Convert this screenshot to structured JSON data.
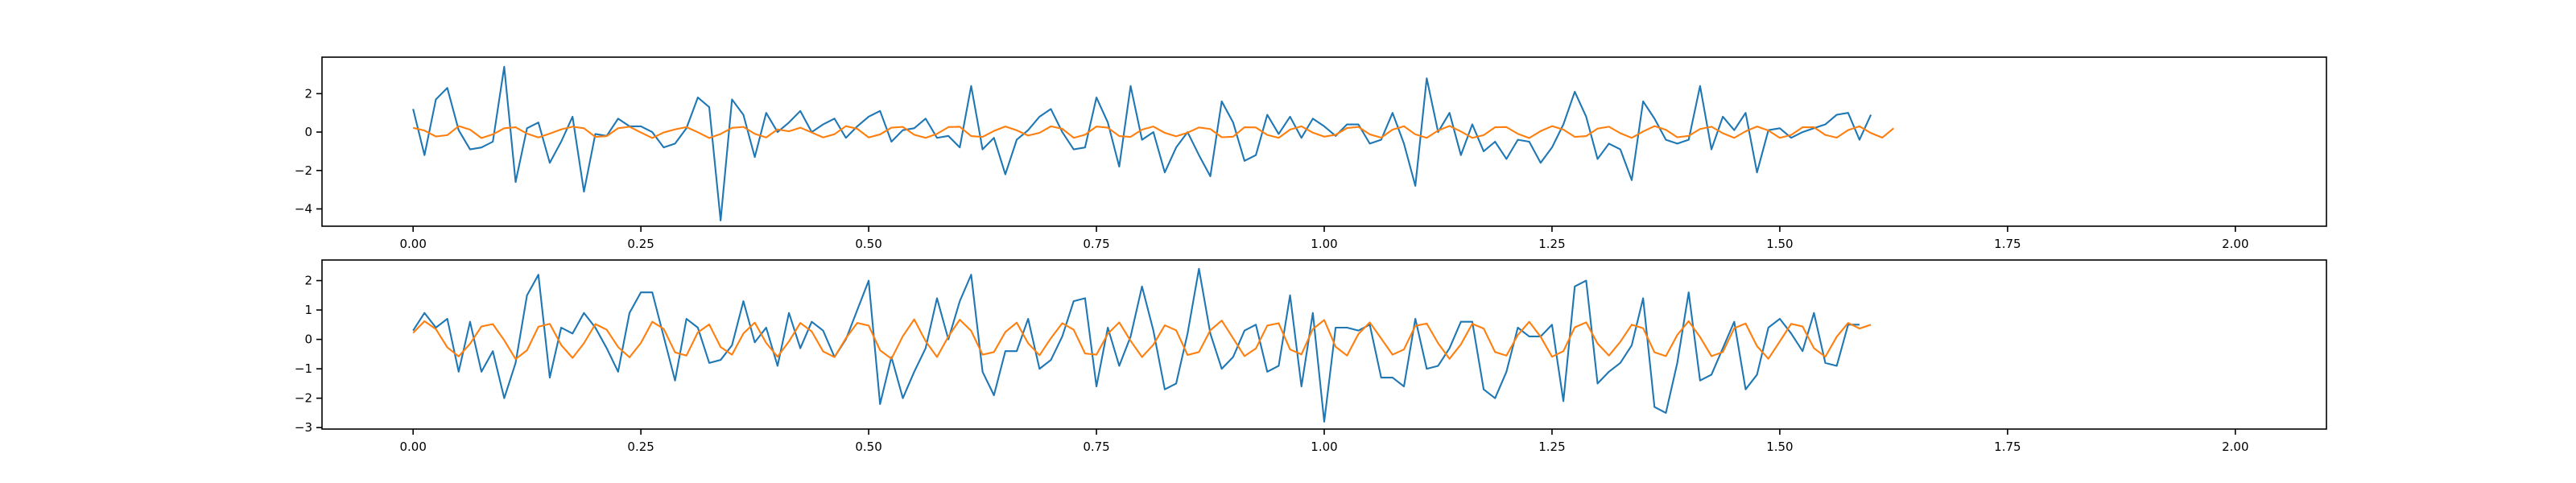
{
  "colors": {
    "noisy": "#1f77b4",
    "smooth": "#ff7f0e",
    "axis": "#000000",
    "background": "#ffffff"
  },
  "chart_data": [
    {
      "type": "line",
      "xlabel": "",
      "ylabel": "",
      "xlim": [
        -0.1,
        2.1
      ],
      "ylim": [
        -4.9,
        3.9
      ],
      "xticks": [
        0.0,
        0.25,
        0.5,
        0.75,
        1.0,
        1.25,
        1.5,
        1.75,
        2.0
      ],
      "xtick_labels": [
        "0.00",
        "0.25",
        "0.50",
        "0.75",
        "1.00",
        "1.25",
        "1.50",
        "1.75",
        "2.00"
      ],
      "yticks": [
        -4,
        -2,
        0,
        2
      ],
      "ytick_labels": [
        "−4",
        "−2",
        "0",
        "2"
      ],
      "grid": false,
      "x_start": 0.0,
      "x_step": 0.0125,
      "series": [
        {
          "color": "#1f77b4",
          "values": [
            1.2,
            -1.2,
            1.7,
            2.3,
            0.1,
            -0.9,
            -0.8,
            -0.5,
            3.4,
            -2.6,
            0.2,
            0.5,
            -1.6,
            -0.5,
            0.8,
            -3.1,
            -0.1,
            -0.2,
            0.7,
            0.3,
            0.3,
            0.0,
            -0.8,
            -0.6,
            0.2,
            1.8,
            1.3,
            -4.6,
            1.7,
            0.9,
            -1.3,
            1.0,
            0.0,
            0.5,
            1.1,
            0.0,
            0.4,
            0.7,
            -0.3,
            0.3,
            0.8,
            1.1,
            -0.5,
            0.1,
            0.2,
            0.7,
            -0.3,
            -0.2,
            -0.8,
            2.4,
            -0.9,
            -0.3,
            -2.2,
            -0.4,
            0.1,
            0.8,
            1.2,
            0.0,
            -0.9,
            -0.8,
            1.8,
            0.5,
            -1.8,
            2.4,
            -0.4,
            0.0,
            -2.1,
            -0.8,
            0.0,
            -1.2,
            -2.3,
            1.6,
            0.5,
            -1.5,
            -1.2,
            0.9,
            -0.1,
            0.8,
            -0.3,
            0.7,
            0.3,
            -0.2,
            0.4,
            0.4,
            -0.6,
            -0.4,
            1.0,
            -0.6,
            -2.8,
            2.8,
            0.0,
            1.0,
            -1.2,
            0.4,
            -1.0,
            -0.5,
            -1.4,
            -0.4,
            -0.5,
            -1.6,
            -0.8,
            0.4,
            2.1,
            0.8,
            -1.4,
            -0.6,
            -0.9,
            -2.5,
            1.6,
            0.7,
            -0.4,
            -0.6,
            -0.4,
            2.4,
            -0.9,
            0.8,
            0.1,
            1.0,
            -2.1,
            0.1,
            0.2,
            -0.3,
            0.0,
            0.2,
            0.4,
            0.9,
            1.0,
            -0.4,
            0.9
          ]
        },
        {
          "color": "#ff7f0e",
          "values": [
            0.22,
            0.08,
            -0.23,
            -0.16,
            0.31,
            0.13,
            -0.31,
            -0.12,
            0.2,
            0.25,
            -0.08,
            -0.28,
            -0.08,
            0.14,
            0.28,
            0.2,
            -0.25,
            -0.21,
            0.2,
            0.28,
            -0.02,
            -0.31,
            -0.02,
            0.14,
            0.26,
            -0.01,
            -0.31,
            -0.1,
            0.22,
            0.27,
            -0.09,
            -0.28,
            0.14,
            0.04,
            0.23,
            -0.02,
            -0.28,
            -0.11,
            0.31,
            0.17,
            -0.28,
            -0.12,
            0.23,
            0.27,
            -0.14,
            -0.3,
            -0.09,
            0.26,
            0.28,
            -0.21,
            -0.25,
            0.06,
            0.29,
            0.09,
            -0.18,
            -0.04,
            0.3,
            0.17,
            -0.3,
            -0.14,
            0.29,
            0.23,
            -0.21,
            -0.25,
            0.13,
            0.29,
            -0.04,
            -0.22,
            -0.03,
            0.24,
            0.16,
            -0.27,
            -0.24,
            0.25,
            0.24,
            -0.15,
            -0.3,
            0.13,
            0.3,
            -0.03,
            -0.24,
            -0.14,
            0.21,
            0.27,
            -0.12,
            -0.29,
            0.13,
            0.3,
            -0.12,
            -0.3,
            0.08,
            0.32,
            0.03,
            -0.3,
            -0.16,
            0.25,
            0.26,
            -0.09,
            -0.31,
            0.05,
            0.31,
            0.13,
            -0.25,
            -0.21,
            0.18,
            0.28,
            -0.06,
            -0.3,
            0.03,
            0.31,
            0.12,
            -0.27,
            -0.2,
            0.16,
            0.28,
            -0.06,
            -0.3,
            0.04,
            0.29,
            0.08,
            -0.3,
            -0.15,
            0.25,
            0.25,
            -0.15,
            -0.29,
            0.1,
            0.3,
            -0.05,
            -0.29,
            0.2
          ]
        }
      ]
    },
    {
      "type": "line",
      "xlabel": "",
      "ylabel": "",
      "xlim": [
        -0.1,
        2.1
      ],
      "ylim": [
        -3.05,
        2.7
      ],
      "xticks": [
        0.0,
        0.25,
        0.5,
        0.75,
        1.0,
        1.25,
        1.5,
        1.75,
        2.0
      ],
      "xtick_labels": [
        "0.00",
        "0.25",
        "0.50",
        "0.75",
        "1.00",
        "1.25",
        "1.50",
        "1.75",
        "2.00"
      ],
      "yticks": [
        -3,
        -2,
        -1,
        0,
        1,
        2
      ],
      "ytick_labels": [
        "−3",
        "−2",
        "−1",
        "0",
        "1",
        "2"
      ],
      "grid": false,
      "x_start": 0.0,
      "x_step": 0.0125,
      "series": [
        {
          "color": "#1f77b4",
          "values": [
            0.3,
            0.9,
            0.4,
            0.7,
            -1.1,
            0.6,
            -1.1,
            -0.4,
            -2.0,
            -0.8,
            1.5,
            2.2,
            -1.3,
            0.4,
            0.2,
            0.9,
            0.4,
            -0.3,
            -1.1,
            0.9,
            1.6,
            1.6,
            0.1,
            -1.4,
            0.7,
            0.4,
            -0.8,
            -0.7,
            -0.2,
            1.3,
            -0.1,
            0.4,
            -0.9,
            0.9,
            -0.3,
            0.6,
            0.3,
            -0.6,
            0.0,
            1.0,
            2.0,
            -2.2,
            -0.6,
            -2.0,
            -1.1,
            -0.3,
            1.4,
            0.0,
            1.3,
            2.2,
            -1.1,
            -1.9,
            -0.4,
            -0.4,
            0.7,
            -1.0,
            -0.7,
            0.1,
            1.3,
            1.4,
            -1.6,
            0.4,
            -0.9,
            0.1,
            1.8,
            0.3,
            -1.7,
            -1.5,
            0.2,
            2.4,
            0.2,
            -1.0,
            -0.6,
            0.3,
            0.5,
            -1.1,
            -0.9,
            1.5,
            -1.6,
            0.9,
            -2.8,
            0.4,
            0.4,
            0.3,
            0.5,
            -1.3,
            -1.3,
            -1.6,
            0.7,
            -1.0,
            -0.9,
            -0.3,
            0.6,
            0.6,
            -1.7,
            -2.0,
            -1.1,
            0.4,
            0.1,
            0.1,
            0.5,
            -2.1,
            1.8,
            2.0,
            -1.5,
            -1.1,
            -0.8,
            -0.2,
            1.4,
            -2.3,
            -2.5,
            -0.8,
            1.6,
            -1.4,
            -1.2,
            -0.3,
            0.6,
            -1.7,
            -1.2,
            0.4,
            0.7,
            0.2,
            -0.4,
            0.9,
            -0.8,
            -0.9,
            0.5,
            0.5
          ]
        },
        {
          "color": "#ff7f0e",
          "values": [
            0.22,
            0.62,
            0.35,
            -0.27,
            -0.58,
            -0.15,
            0.44,
            0.52,
            -0.03,
            -0.67,
            -0.37,
            0.43,
            0.53,
            -0.19,
            -0.63,
            -0.13,
            0.52,
            0.33,
            -0.26,
            -0.61,
            -0.12,
            0.6,
            0.36,
            -0.44,
            -0.55,
            0.24,
            0.51,
            -0.26,
            -0.52,
            0.2,
            0.57,
            -0.12,
            -0.59,
            -0.07,
            0.56,
            0.27,
            -0.41,
            -0.6,
            0.04,
            0.56,
            0.47,
            -0.37,
            -0.66,
            0.11,
            0.68,
            -0.06,
            -0.6,
            0.1,
            0.67,
            0.29,
            -0.52,
            -0.43,
            0.25,
            0.57,
            -0.13,
            -0.54,
            0.04,
            0.55,
            0.33,
            -0.48,
            -0.52,
            0.19,
            0.58,
            -0.05,
            -0.6,
            -0.18,
            0.48,
            0.31,
            -0.53,
            -0.43,
            0.31,
            0.64,
            0.04,
            -0.57,
            -0.31,
            0.47,
            0.55,
            -0.34,
            -0.51,
            0.35,
            0.66,
            -0.25,
            -0.55,
            0.18,
            0.58,
            0.03,
            -0.52,
            -0.34,
            0.46,
            0.54,
            -0.13,
            -0.66,
            -0.17,
            0.53,
            0.37,
            -0.43,
            -0.55,
            0.15,
            0.6,
            0.09,
            -0.59,
            -0.4,
            0.41,
            0.58,
            -0.14,
            -0.55,
            -0.08,
            0.5,
            0.38,
            -0.44,
            -0.57,
            0.15,
            0.62,
            0.08,
            -0.57,
            -0.43,
            0.38,
            0.54,
            -0.23,
            -0.66,
            -0.07,
            0.53,
            0.44,
            -0.3,
            -0.59,
            0.09,
            0.56,
            0.37,
            0.5
          ]
        }
      ]
    }
  ]
}
